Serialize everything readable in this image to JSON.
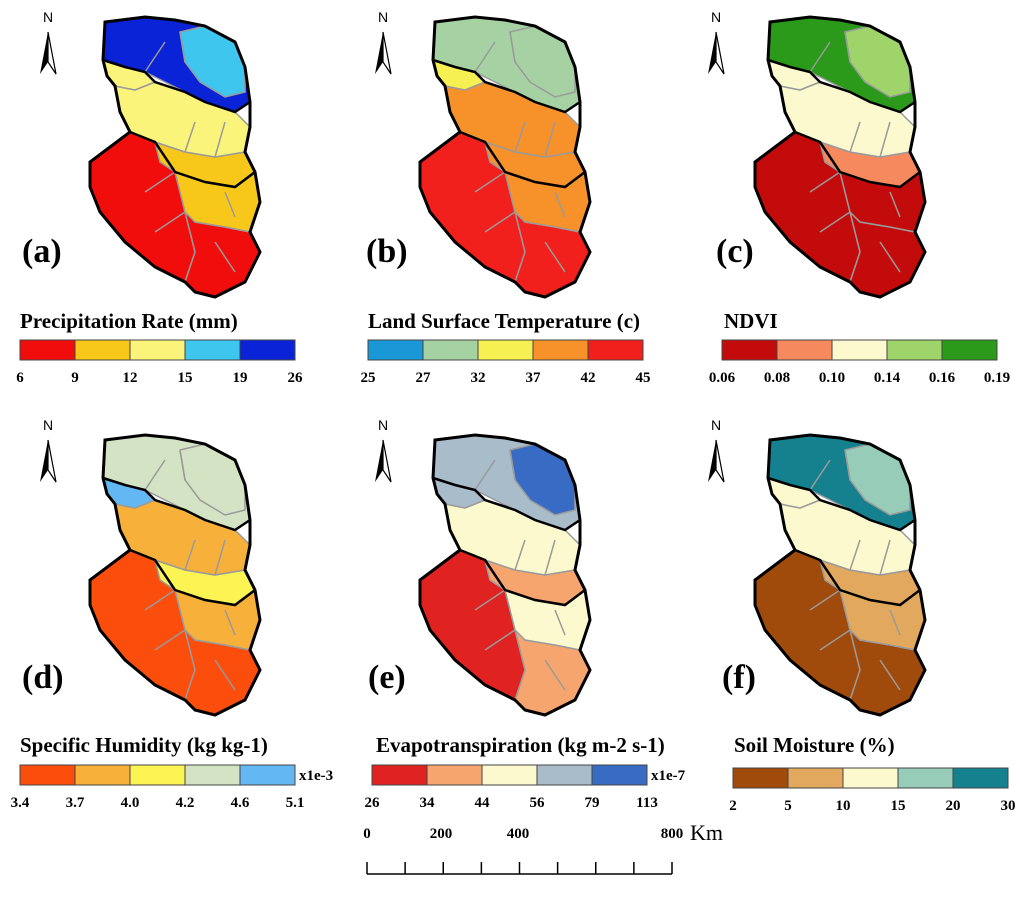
{
  "panels": [
    {
      "label": "(a)",
      "legend_title": "Precipitation Rate (mm)",
      "colors": [
        "#f20d0d",
        "#f7c81a",
        "#fbf47a",
        "#3ec6ee",
        "#0a23d6"
      ],
      "ticks": [
        "6",
        "9",
        "12",
        "15",
        "19",
        "26"
      ],
      "multiplier": "",
      "map_colors": {
        "north": "#0a23d6",
        "northEast": "#3ec6ee",
        "middle": "#fbf47a",
        "middleSouth": "#f7c81a",
        "southWest": "#f20d0d",
        "southEast": "#f7c81a",
        "southTip": "#f20d0d",
        "leftStrip": "#fbf47a"
      }
    },
    {
      "label": "(b)",
      "legend_title": "Land Surface Temperature (c)",
      "colors": [
        "#1a97d6",
        "#a6d2a3",
        "#f7f052",
        "#f7922a",
        "#f2201c"
      ],
      "ticks": [
        "25",
        "27",
        "32",
        "37",
        "42",
        "45"
      ],
      "multiplier": "",
      "map_colors": {
        "north": "#a6d2a3",
        "northEast": "#a6d2a3",
        "middle": "#f7922a",
        "middleSouth": "#f7922a",
        "southWest": "#f2201c",
        "southEast": "#f7922a",
        "southTip": "#f2201c",
        "leftStrip": "#f7f052"
      }
    },
    {
      "label": "(c)",
      "legend_title": "NDVI",
      "colors": [
        "#c40b0b",
        "#f68a5e",
        "#fdf9cf",
        "#9fd46b",
        "#2b9a1b"
      ],
      "ticks": [
        "0.06",
        "0.08",
        "0.10",
        "0.14",
        "0.16",
        "0.19"
      ],
      "multiplier": "",
      "map_colors": {
        "north": "#2b9a1b",
        "northEast": "#9fd46b",
        "middle": "#fdf9cf",
        "middleSouth": "#f68a5e",
        "southWest": "#c40b0b",
        "southEast": "#c40b0b",
        "southTip": "#c40b0b",
        "leftStrip": "#fdf9cf"
      }
    },
    {
      "label": "(d)",
      "legend_title": "Specific Humidity (kg kg-1)",
      "colors": [
        "#fb4d0c",
        "#f7b03a",
        "#fbf452",
        "#d5e3c5",
        "#63b8f4"
      ],
      "ticks": [
        "3.4",
        "3.7",
        "4.0",
        "4.2",
        "4.6",
        "5.1"
      ],
      "multiplier": "x1e-3",
      "map_colors": {
        "north": "#d5e3c5",
        "northEast": "#d5e3c5",
        "middle": "#f7b03a",
        "middleSouth": "#fbf452",
        "southWest": "#fb4d0c",
        "southEast": "#f7b03a",
        "southTip": "#fb4d0c",
        "leftStrip": "#63b8f4"
      }
    },
    {
      "label": "(e)",
      "legend_title": "Evapotranspiration (kg m-2 s-1)",
      "colors": [
        "#e02320",
        "#f7a56e",
        "#fdf9cf",
        "#a9bcc9",
        "#386bc4"
      ],
      "ticks": [
        "26",
        "34",
        "44",
        "56",
        "79",
        "113"
      ],
      "multiplier": "x1e-7",
      "map_colors": {
        "north": "#a9bcc9",
        "northEast": "#386bc4",
        "middle": "#fdf9cf",
        "middleSouth": "#f7a56e",
        "southWest": "#e02320",
        "southEast": "#fdf9cf",
        "southTip": "#f7a56e",
        "leftStrip": "#a9bcc9"
      }
    },
    {
      "label": "(f)",
      "legend_title": "Soil Moisture (%)",
      "colors": [
        "#a04a0b",
        "#e2a85e",
        "#fdf9cf",
        "#96ccb8",
        "#15818f"
      ],
      "ticks": [
        "2",
        "5",
        "10",
        "15",
        "20",
        "30"
      ],
      "multiplier": "",
      "map_colors": {
        "north": "#15818f",
        "northEast": "#96ccb8",
        "middle": "#fdf9cf",
        "middleSouth": "#e2a85e",
        "southWest": "#a04a0b",
        "southEast": "#e2a85e",
        "southTip": "#a04a0b",
        "leftStrip": "#fdf9cf"
      }
    }
  ],
  "north_arrow_letter": "N",
  "scale_bar": {
    "ticks": [
      "0",
      "200",
      "400",
      "800"
    ],
    "unit": "Km"
  }
}
